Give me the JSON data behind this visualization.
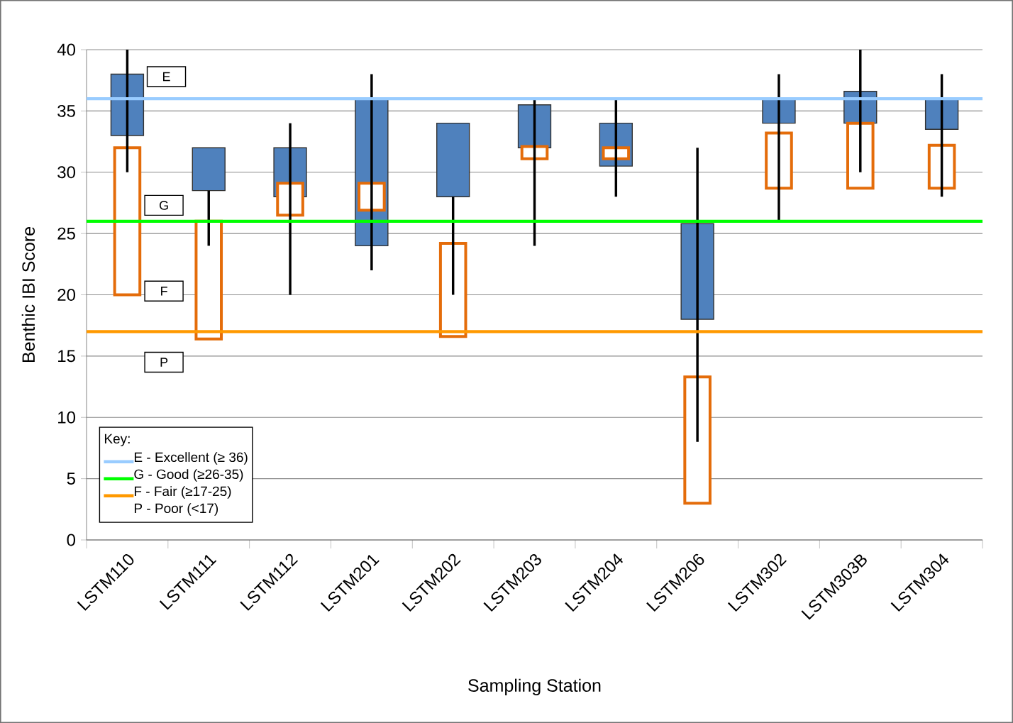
{
  "chart_data": {
    "type": "bar",
    "xlabel": "Sampling Station",
    "ylabel": "Benthic IBI Score",
    "legend_title": "Key:",
    "legend": "bottom left",
    "grid": "y",
    "categories": [
      "LSTM110",
      "LSTM111",
      "LSTM112",
      "LSTM201",
      "LSTM202",
      "LSTM203",
      "LSTM204",
      "LSTM206",
      "LSTM302",
      "LSTM303B",
      "LSTM304"
    ],
    "ylim": [
      0,
      40
    ],
    "yticks": [
      0,
      5,
      10,
      15,
      20,
      25,
      30,
      35,
      40
    ],
    "series": [
      {
        "color": "#4f81bd",
        "base": [
          33,
          28.5,
          28,
          24,
          28,
          32,
          30.5,
          18,
          34,
          34,
          33.5
        ],
        "values": [
          5,
          3.5,
          4,
          12,
          6,
          3.5,
          3.5,
          7.8,
          2,
          2.6,
          2.5
        ]
      },
      {
        "color": "#e46c0a",
        "base": [
          20,
          16.4,
          26.5,
          26.9,
          16.6,
          31.1,
          31.1,
          3,
          28.7,
          28.7,
          28.7
        ],
        "values": [
          12,
          9.6,
          2.6,
          2.2,
          7.6,
          1,
          0.9,
          10.3,
          4.5,
          5.3,
          3.5
        ]
      },
      {
        "color": "#000000",
        "base": [
          30,
          24,
          20,
          22,
          20,
          24,
          28,
          8,
          26,
          30,
          28
        ],
        "values": [
          10,
          4.5,
          14,
          16,
          8,
          12,
          8,
          24,
          12,
          10,
          10
        ]
      }
    ],
    "ref_lines": [
      {
        "axis": "y",
        "value": 36,
        "label": "E - Excellent (≥ 36)",
        "color": "#99ccff"
      },
      {
        "axis": "y",
        "value": 26,
        "label": "G - Good (≥26-35)",
        "color": "#00ff00"
      },
      {
        "axis": "y",
        "value": 17,
        "label": "F - Fair (≥17-25)",
        "color": "#ff9900"
      }
    ],
    "annotations": [
      "E",
      "G",
      "F",
      "P",
      "P - Poor (<17)"
    ]
  }
}
